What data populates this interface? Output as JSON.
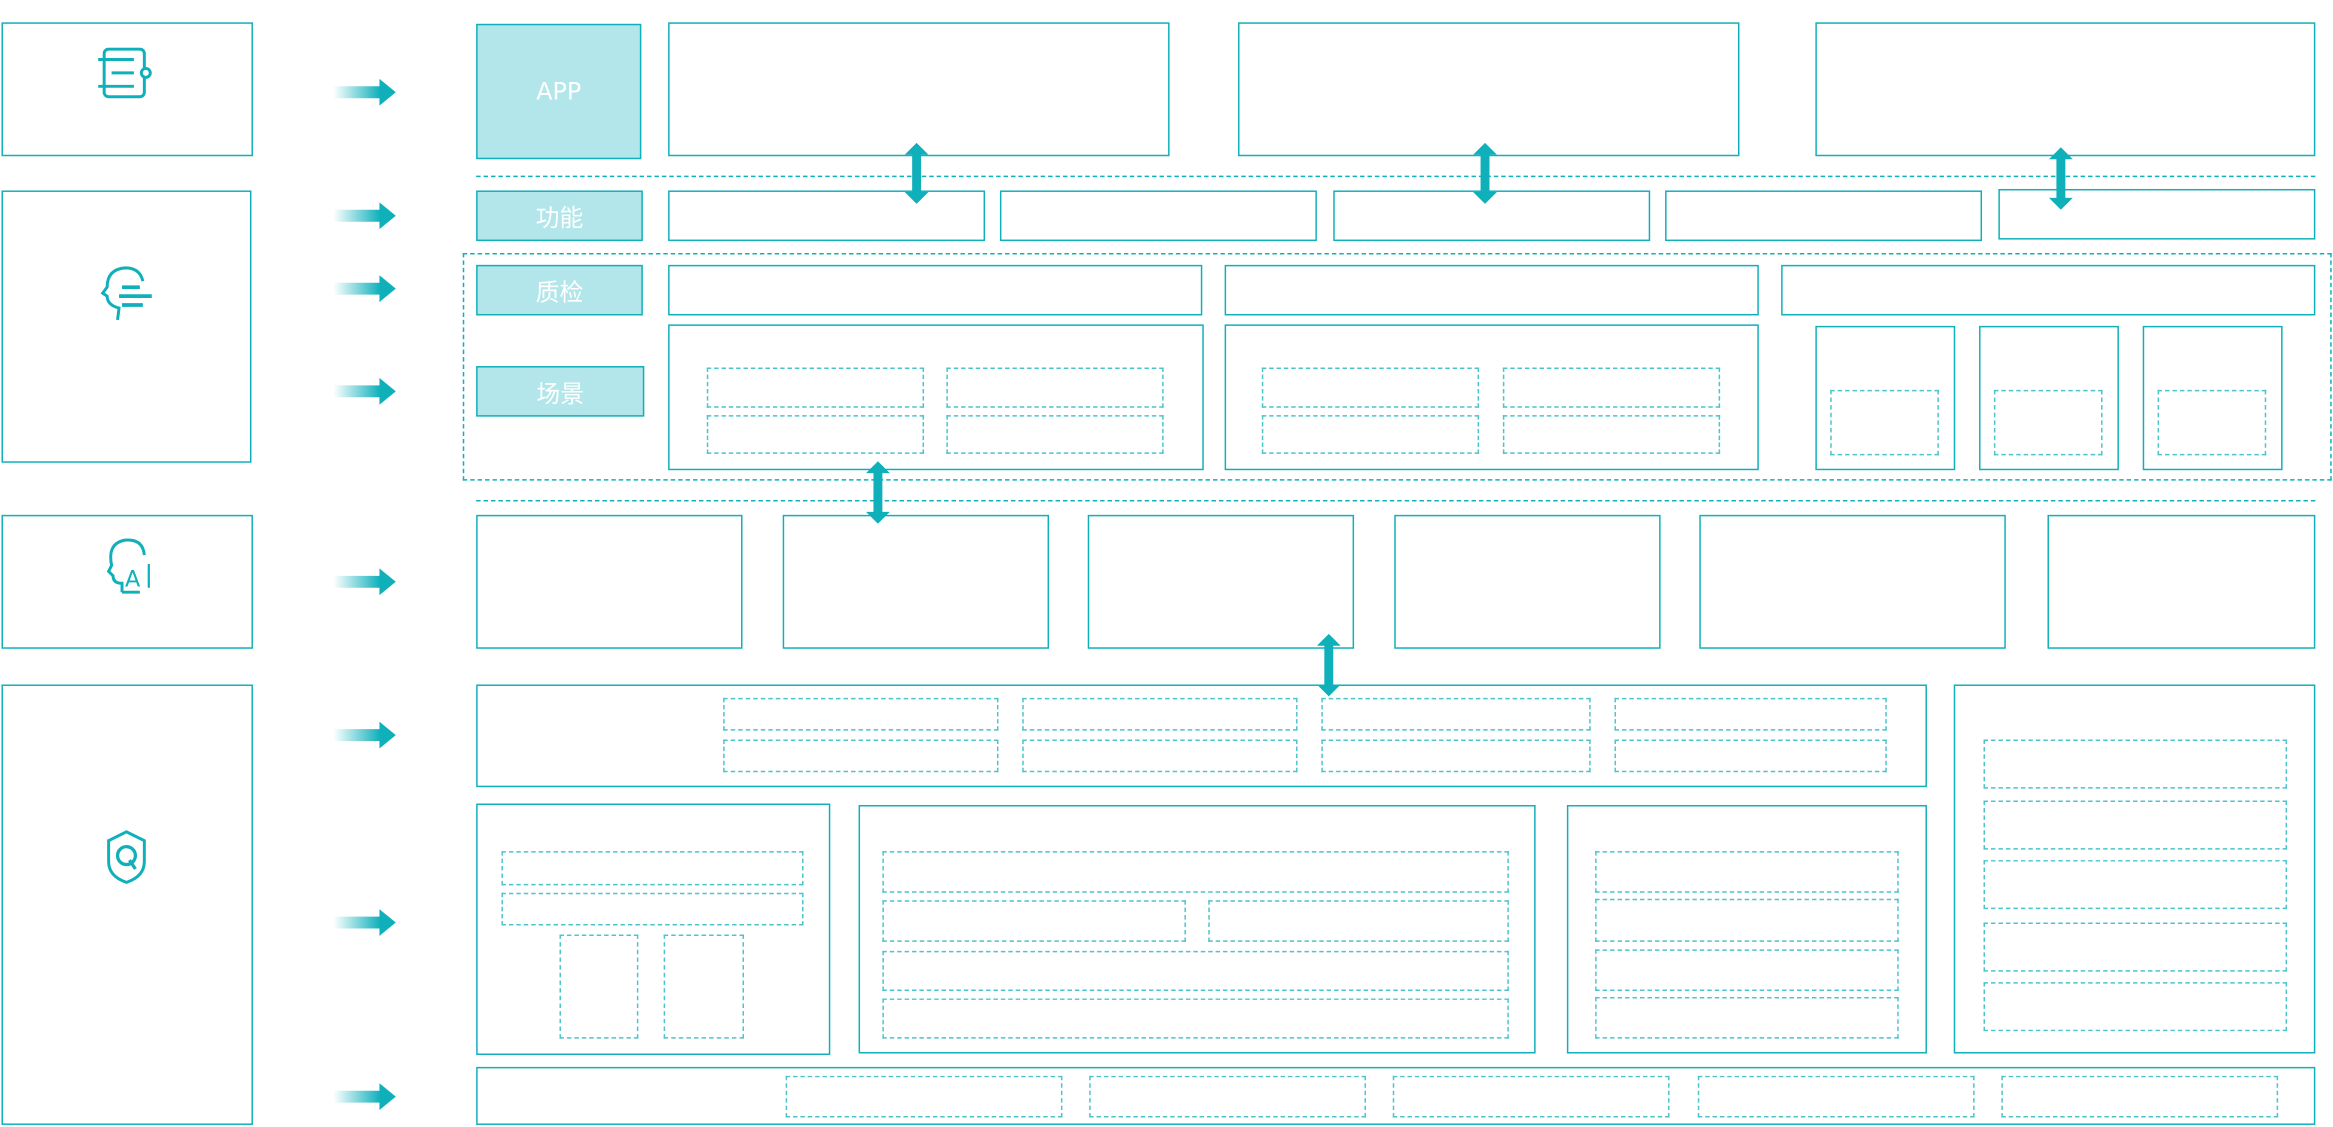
{
  "labels": {
    "app": "APP",
    "function": "功能",
    "inspection": "质检",
    "scene": "场景"
  },
  "icons": [
    "list-settings-icon",
    "head-menu-icon",
    "head-ai-icon",
    "shield-q-icon"
  ],
  "colors": {
    "accent": "#10b0bb",
    "label_fill": "#b3e6ea",
    "dashed": "#4cc4cc"
  }
}
